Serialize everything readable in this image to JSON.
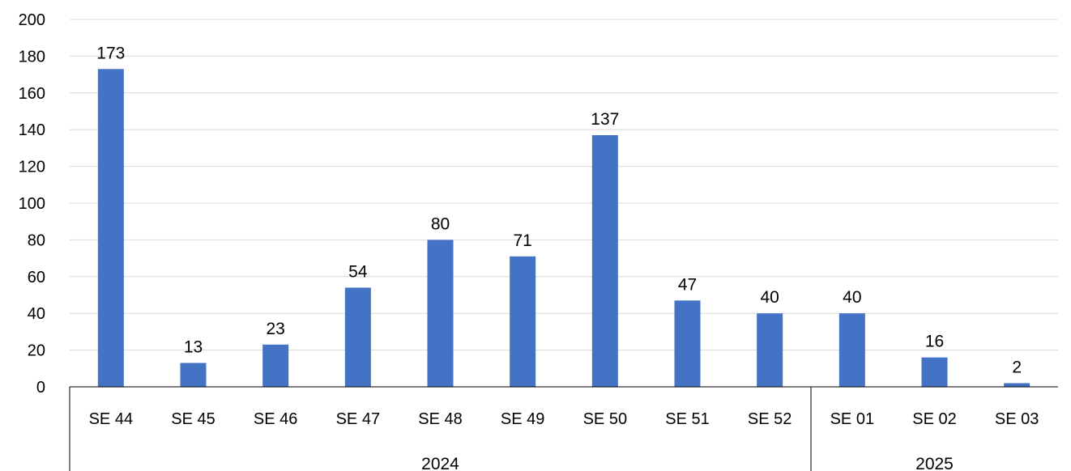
{
  "chart_data": {
    "type": "bar",
    "categories": [
      "SE 44",
      "SE 45",
      "SE 46",
      "SE 47",
      "SE 48",
      "SE 49",
      "SE 50",
      "SE 51",
      "SE 52",
      "SE 01",
      "SE 02",
      "SE 03"
    ],
    "groups": [
      {
        "label": "2024",
        "categories": [
          "SE 44",
          "SE 45",
          "SE 46",
          "SE 47",
          "SE 48",
          "SE 49",
          "SE 50",
          "SE 51",
          "SE 52"
        ]
      },
      {
        "label": "2025",
        "categories": [
          "SE 01",
          "SE 02",
          "SE 03"
        ]
      }
    ],
    "values": [
      173,
      13,
      23,
      54,
      80,
      71,
      137,
      47,
      40,
      40,
      16,
      2
    ],
    "data_labels": [
      "173",
      "13",
      "23",
      "54",
      "80",
      "71",
      "137",
      "47",
      "40",
      "40",
      "16",
      "2"
    ],
    "title": "",
    "xlabel": "",
    "ylabel": "",
    "ylim": [
      0,
      200
    ],
    "yticks": [
      0,
      20,
      40,
      60,
      80,
      100,
      120,
      140,
      160,
      180,
      200
    ],
    "grid": true,
    "legend": "none",
    "bar_color": "#4472c4",
    "grid_color": "#d9d9d9"
  }
}
